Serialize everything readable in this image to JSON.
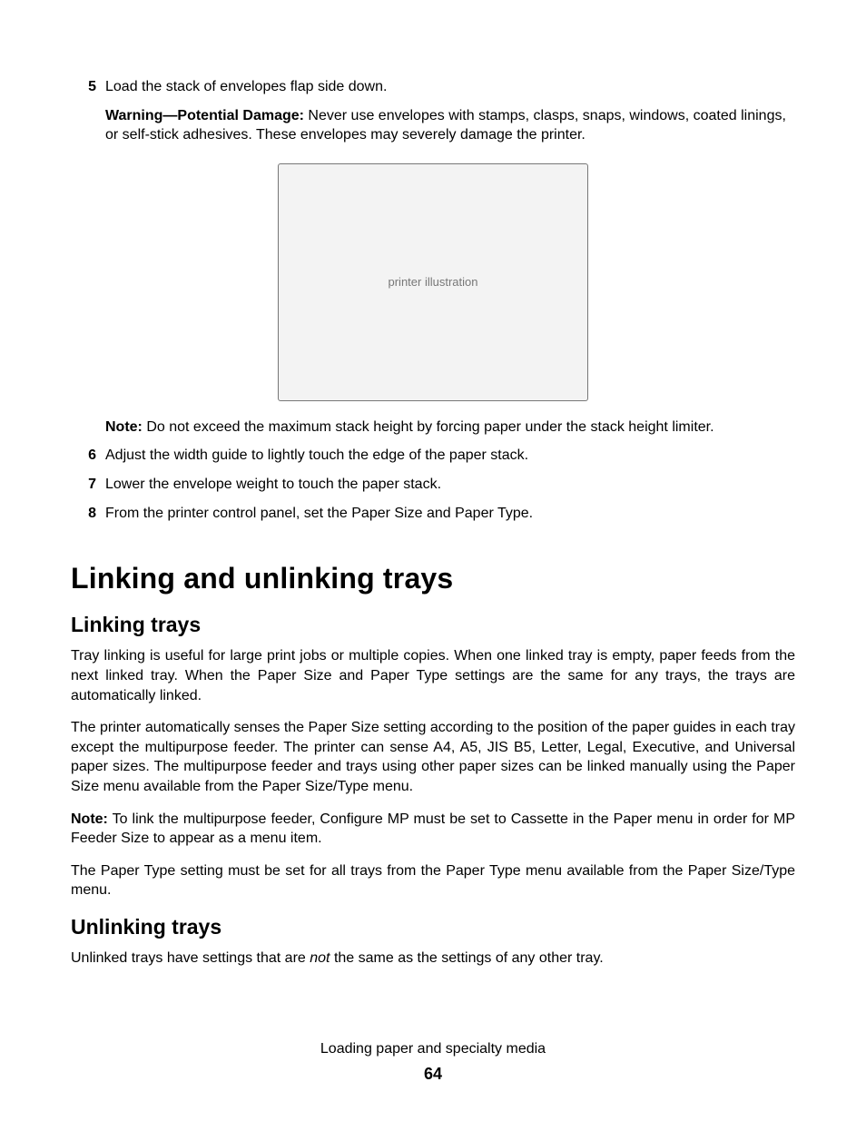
{
  "step5": {
    "num": "5",
    "text": "Load the stack of envelopes flap side down."
  },
  "warning": {
    "label": "Warning—Potential Damage:",
    "text": " Never use envelopes with stamps, clasps, snaps, windows, coated linings, or self-stick adhesives. These envelopes may severely damage the printer."
  },
  "figure": {
    "placeholder": "printer illustration"
  },
  "note1": {
    "label": "Note:",
    "text": " Do not exceed the maximum stack height by forcing paper under the stack height limiter."
  },
  "step6": {
    "num": "6",
    "text": "Adjust the width guide to lightly touch the edge of the paper stack."
  },
  "step7": {
    "num": "7",
    "text": "Lower the envelope weight to touch the paper stack."
  },
  "step8": {
    "num": "8",
    "text": "From the printer control panel, set the Paper Size and Paper Type."
  },
  "h1": "Linking and unlinking trays",
  "linking": {
    "title": "Linking trays",
    "p1": "Tray linking is useful for large print jobs or multiple copies. When one linked tray is empty, paper feeds from the next linked tray. When the Paper Size and Paper Type settings are the same for any trays, the trays are automatically linked.",
    "p2": "The printer automatically senses the Paper Size setting according to the position of the paper guides in each tray except the multipurpose feeder. The printer can sense A4, A5, JIS B5, Letter, Legal, Executive, and Universal paper sizes. The multipurpose feeder and trays using other paper sizes can be linked manually using the Paper Size menu available from the Paper Size/Type menu.",
    "note_label": "Note:",
    "note_text": " To link the multipurpose feeder, Configure MP must be set to Cassette in the Paper menu in order for MP Feeder Size to appear as a menu item.",
    "p3": "The Paper Type setting must be set for all trays from the Paper Type menu available from the Paper Size/Type menu."
  },
  "unlinking": {
    "title": "Unlinking trays",
    "p1_pre": "Unlinked trays have settings that are ",
    "p1_em": "not",
    "p1_post": " the same as the settings of any other tray."
  },
  "footer": {
    "chapter": "Loading paper and specialty media",
    "page": "64"
  }
}
